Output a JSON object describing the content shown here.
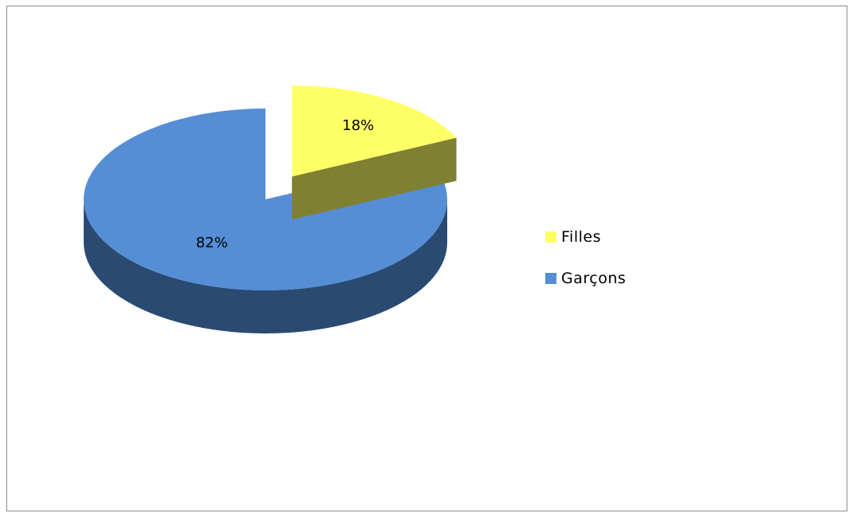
{
  "chart_data": {
    "type": "pie",
    "title": "",
    "categories": [
      "Filles",
      "Garçons"
    ],
    "values": [
      18,
      82
    ],
    "labels": [
      "18%",
      "82%"
    ],
    "exploded": [
      "Filles"
    ],
    "style": "3d",
    "legend_position": "right",
    "colors": {
      "Filles": {
        "top": "#ffff66",
        "side": "#808033"
      },
      "Garçons": {
        "top": "#558ed5",
        "side": "#2a4a72"
      }
    }
  }
}
